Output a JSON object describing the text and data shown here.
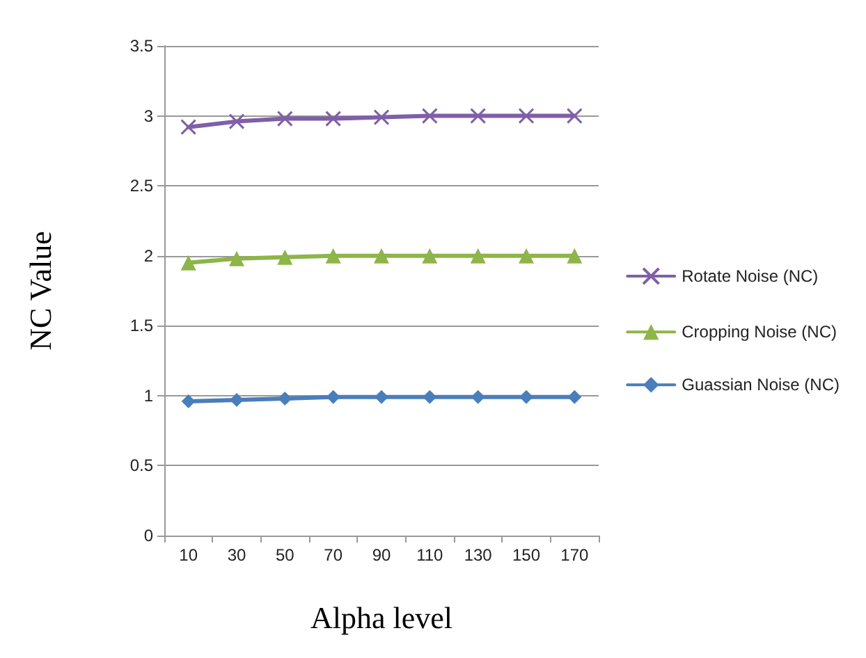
{
  "chart_data": {
    "type": "line",
    "xlabel": "Alpha level",
    "ylabel": "NC Value",
    "categories": [
      "10",
      "30",
      "50",
      "70",
      "90",
      "110",
      "130",
      "150",
      "170"
    ],
    "series": [
      {
        "name": "Rotate Noise (NC)",
        "color": "#7f5fa8",
        "marker": "cross",
        "values": [
          2.92,
          2.96,
          2.98,
          2.98,
          2.99,
          3,
          3,
          3,
          3
        ]
      },
      {
        "name": "Cropping Noise (NC)",
        "color": "#8db548",
        "marker": "triangle",
        "values": [
          1.95,
          1.98,
          1.99,
          2,
          2,
          2,
          2,
          2,
          2
        ]
      },
      {
        "name": "Guassian Noise (NC)",
        "color": "#4a7ebb",
        "marker": "diamond",
        "values": [
          0.96,
          0.97,
          0.98,
          0.99,
          0.99,
          0.99,
          0.99,
          0.99,
          0.99
        ]
      }
    ],
    "ylim": [
      0,
      3.5
    ],
    "yticks": [
      0,
      0.5,
      1,
      1.5,
      2,
      2.5,
      3,
      3.5
    ],
    "grid": "y",
    "legend": "right",
    "line_style": "solid"
  }
}
